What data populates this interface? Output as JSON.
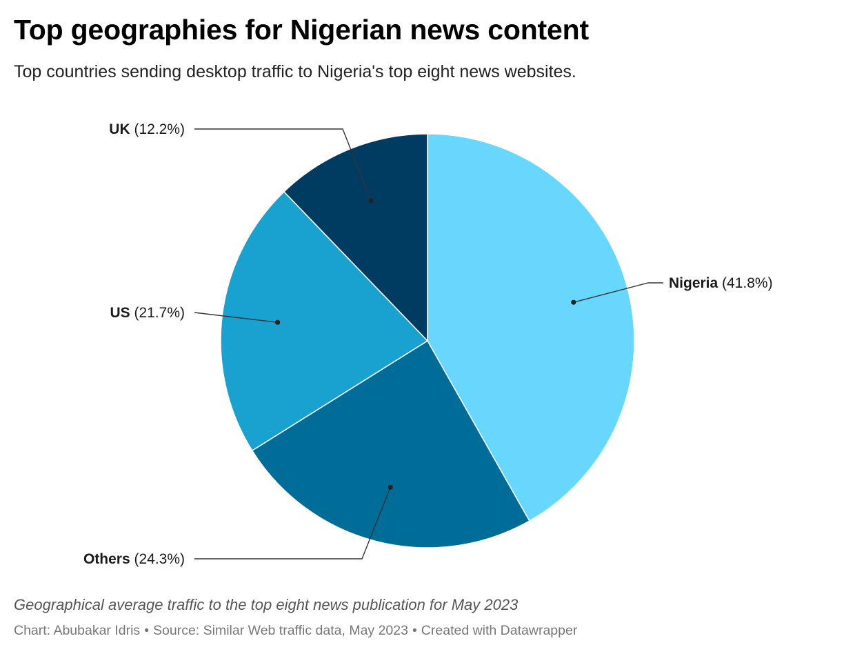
{
  "header": {
    "title": "Top geographies for Nigerian news content",
    "subtitle": "Top countries sending desktop traffic to Nigeria's top eight news websites."
  },
  "chart_data": {
    "type": "pie",
    "slices": [
      {
        "name": "Nigeria",
        "value": 41.8,
        "value_label": "(41.8%)",
        "color": "#67d7fd"
      },
      {
        "name": "Others",
        "value": 24.3,
        "value_label": "(24.3%)",
        "color": "#006c98"
      },
      {
        "name": "US",
        "value": 21.7,
        "value_label": "(21.7%)",
        "color": "#19a1cf"
      },
      {
        "name": "UK",
        "value": 12.2,
        "value_label": "(12.2%)",
        "color": "#003c62"
      }
    ],
    "start_angle": "12 o'clock",
    "direction": "clockwise",
    "units": "%"
  },
  "footer": {
    "notes": "Geographical average traffic to the top eight news publication for May 2023",
    "chart_credit": "Chart: Abubakar Idris",
    "source": "Source: Similar Web traffic data, May 2023",
    "tool": "Created with Datawrapper",
    "separator": "•"
  }
}
